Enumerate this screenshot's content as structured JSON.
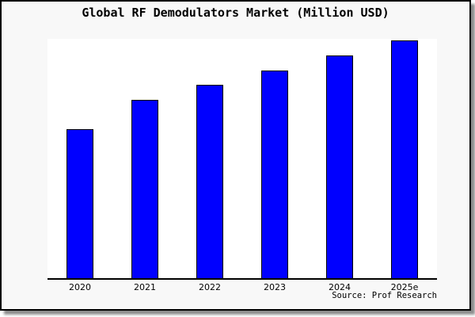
{
  "chart_data": {
    "type": "bar",
    "title": "Global RF Demodulators Market (Million USD)",
    "categories": [
      "2020",
      "2021",
      "2022",
      "2023",
      "2024",
      "2025e"
    ],
    "values_pct_of_max": [
      62.7,
      75.0,
      81.3,
      87.3,
      93.7,
      100
    ],
    "series_note": "single series; no y-axis ticks or numeric labels shown, heights are relative to tallest bar (2025e)",
    "xlabel": "",
    "ylabel": "",
    "grid": "off",
    "legend": "none",
    "source_note": "Source: Prof Research"
  },
  "colors": {
    "bar_fill": "#0000ff",
    "bar_border": "#000000",
    "axis": "#000000",
    "plot_background": "#ffffff",
    "canvas_background": "#f8f8f8",
    "frame_border": "#000000",
    "shadow": "#999999",
    "text": "#000000"
  }
}
